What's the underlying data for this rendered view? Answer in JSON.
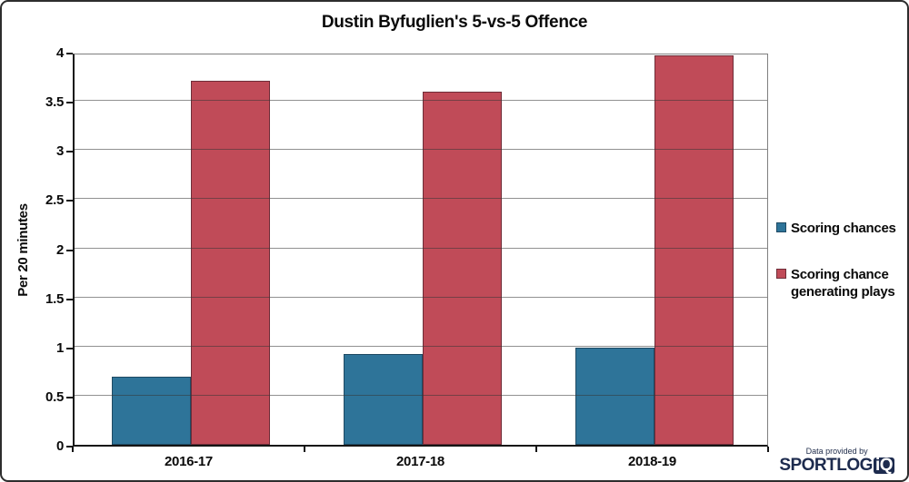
{
  "title": "Dustin Byfuglien's 5-vs-5 Offence",
  "chart_data": {
    "type": "bar",
    "title": "Dustin Byfuglien's 5-vs-5 Offence",
    "categories": [
      "2016-17",
      "2017-18",
      "2018-19"
    ],
    "series": [
      {
        "name": "Scoring chances",
        "color": "#2e7499",
        "border_color": "#1f4a63",
        "values": [
          0.69,
          0.92,
          0.99
        ]
      },
      {
        "name": "Scoring chance generating plays",
        "color": "#c04b58",
        "border_color": "#6e2d38",
        "values": [
          3.7,
          3.59,
          3.96
        ]
      }
    ],
    "xlabel": "",
    "ylabel": "Per 20 minutes",
    "ylim": [
      0,
      4
    ],
    "ytick_step": 0.5,
    "grid": true,
    "legend_position": "right"
  },
  "footer": {
    "note": "Data provided by",
    "brand_main": "SPORTLOG",
    "brand_badge": "iQ"
  }
}
